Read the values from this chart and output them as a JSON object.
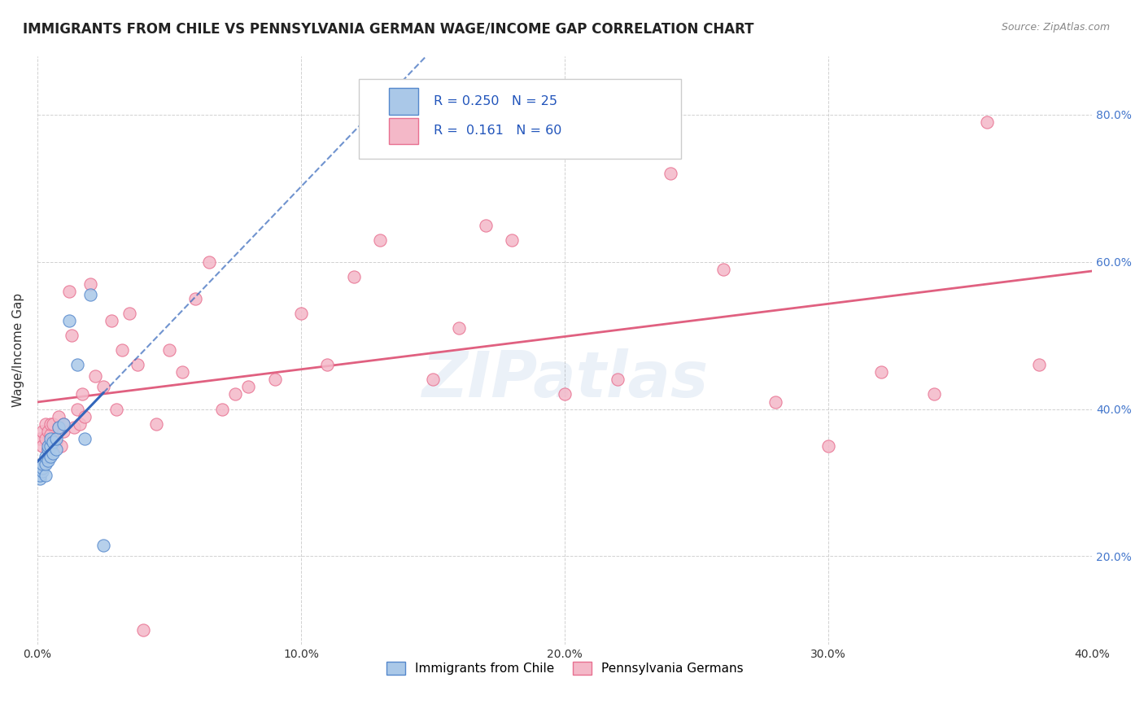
{
  "title": "IMMIGRANTS FROM CHILE VS PENNSYLVANIA GERMAN WAGE/INCOME GAP CORRELATION CHART",
  "source": "Source: ZipAtlas.com",
  "ylabel": "Wage/Income Gap",
  "series1_label": "Immigrants from Chile",
  "series1_color": "#aac8e8",
  "series1_edge_color": "#5588cc",
  "series1_line_color": "#3366bb",
  "series1_R": 0.25,
  "series1_N": 25,
  "series1_x": [
    0.001,
    0.001,
    0.002,
    0.002,
    0.002,
    0.003,
    0.003,
    0.003,
    0.004,
    0.004,
    0.004,
    0.005,
    0.005,
    0.005,
    0.006,
    0.006,
    0.007,
    0.007,
    0.008,
    0.01,
    0.012,
    0.015,
    0.018,
    0.02,
    0.025
  ],
  "series1_y": [
    0.305,
    0.31,
    0.315,
    0.32,
    0.325,
    0.31,
    0.325,
    0.335,
    0.33,
    0.345,
    0.35,
    0.335,
    0.35,
    0.36,
    0.34,
    0.355,
    0.345,
    0.36,
    0.375,
    0.38,
    0.52,
    0.46,
    0.36,
    0.555,
    0.215
  ],
  "series2_label": "Pennsylvania Germans",
  "series2_color": "#f4b8c8",
  "series2_edge_color": "#e87090",
  "series2_line_color": "#e06080",
  "series2_R": 0.161,
  "series2_N": 60,
  "series2_x": [
    0.001,
    0.002,
    0.002,
    0.003,
    0.003,
    0.004,
    0.004,
    0.005,
    0.005,
    0.006,
    0.006,
    0.007,
    0.008,
    0.008,
    0.009,
    0.01,
    0.01,
    0.012,
    0.013,
    0.014,
    0.015,
    0.016,
    0.017,
    0.018,
    0.02,
    0.022,
    0.025,
    0.028,
    0.03,
    0.032,
    0.035,
    0.038,
    0.04,
    0.045,
    0.05,
    0.055,
    0.06,
    0.065,
    0.07,
    0.075,
    0.08,
    0.09,
    0.1,
    0.11,
    0.12,
    0.13,
    0.15,
    0.16,
    0.17,
    0.18,
    0.2,
    0.22,
    0.24,
    0.26,
    0.28,
    0.3,
    0.32,
    0.34,
    0.36,
    0.38
  ],
  "series2_y": [
    0.36,
    0.35,
    0.37,
    0.36,
    0.38,
    0.345,
    0.37,
    0.365,
    0.38,
    0.36,
    0.38,
    0.355,
    0.375,
    0.39,
    0.35,
    0.37,
    0.38,
    0.56,
    0.5,
    0.375,
    0.4,
    0.38,
    0.42,
    0.39,
    0.57,
    0.445,
    0.43,
    0.52,
    0.4,
    0.48,
    0.53,
    0.46,
    0.1,
    0.38,
    0.48,
    0.45,
    0.55,
    0.6,
    0.4,
    0.42,
    0.43,
    0.44,
    0.53,
    0.46,
    0.58,
    0.63,
    0.44,
    0.51,
    0.65,
    0.63,
    0.42,
    0.44,
    0.72,
    0.59,
    0.41,
    0.35,
    0.45,
    0.42,
    0.79,
    0.46
  ],
  "xmin": 0.0,
  "xmax": 0.4,
  "ymin": 0.08,
  "ymax": 0.88,
  "yticks": [
    0.2,
    0.4,
    0.6,
    0.8
  ],
  "xticks": [
    0.0,
    0.1,
    0.2,
    0.3,
    0.4
  ],
  "watermark": "ZIPatlas",
  "background_color": "#ffffff",
  "grid_color": "#cccccc"
}
